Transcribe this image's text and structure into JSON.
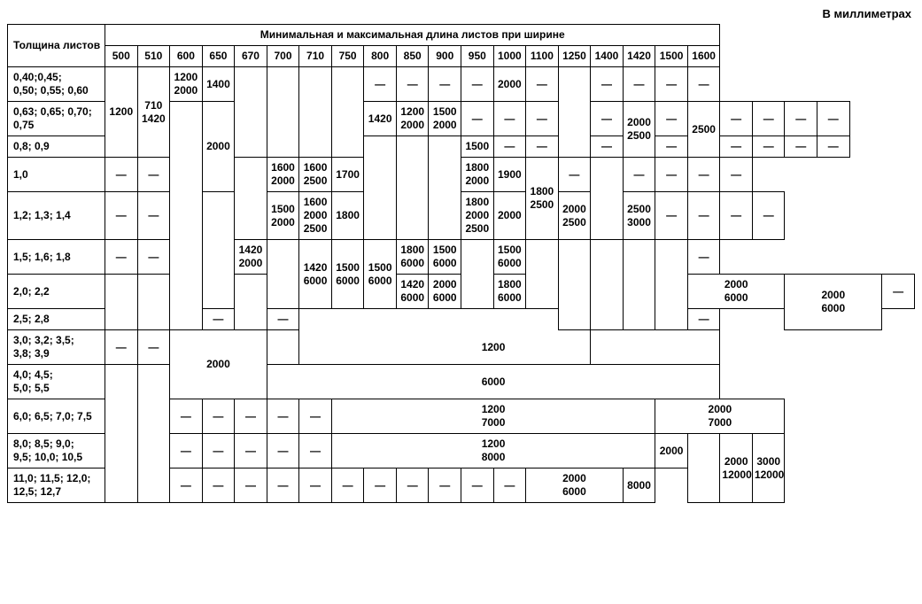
{
  "unit": "В миллиметрах",
  "header": {
    "row_label": "Толщина листов",
    "title": "Минимальная и максимальная длина листов при ширине",
    "widths": [
      "500",
      "510",
      "600",
      "650",
      "670",
      "700",
      "710",
      "750",
      "800",
      "850",
      "900",
      "950",
      "1000",
      "1100",
      "1250",
      "1400",
      "1420",
      "1500",
      "1600"
    ]
  },
  "dash": "—",
  "rows": {
    "r1_label": "0,40;0,45;\n0,50; 0,55; 0,60",
    "r2_label": "0,63; 0,65; 0,70;\n0,75",
    "r3_label": "0,8; 0,9",
    "r4_label": "1,0",
    "r5_label": "1,2; 1,3; 1,4",
    "r6_label": "1,5; 1,6; 1,8",
    "r7_label": "2,0; 2,2",
    "r8_label": "2,5; 2,8",
    "r9_label": "3,0; 3,2; 3,5;\n3,8; 3,9",
    "r10_label": "4,0; 4,5;\n5,0; 5,5",
    "r11_label": "6,0; 6,5; 7,0; 7,5",
    "r12_label": "8,0; 8,5; 9,0;\n9,5; 10,0; 10,5",
    "r13_label": "11,0; 11,5; 12,0;\n12,5; 12,7"
  },
  "cells": {
    "c_500_r1_3": "1200",
    "c_510_r1_3": "710\n1420",
    "c_600_r1": "1200\n2000",
    "c_650_r1": "1400",
    "c_650_r2_4": "2000",
    "c_700_r2": "1420",
    "c_710_r2": "1200\n2000",
    "c_750_r2": "1500\n2000",
    "c_800_r3": "1500",
    "c_1000_r1": "2000",
    "c_1000_r2_3": "2000\n2500",
    "c_1250_r2_3": "2500",
    "c_750_r4": "1600\n2000",
    "c_800_r4": "1600\n2500",
    "c_850_r4": "1700",
    "c_900_r4": "1800\n2000",
    "c_950_r4": "1900",
    "c_1000_r4_5": "1800\n2500",
    "c_750_r5": "1500\n2000",
    "c_800_r5": "1600\n2000\n2500",
    "c_850_r5": "1800",
    "c_900_r5": "1800\n2000\n2500",
    "c_950_r5": "2000",
    "c_1100_r5": "2000\n2500",
    "c_1250_r5": "2500\n3000",
    "c_670_r6": "1420\n2000",
    "c_700_r7": "1420\n6000",
    "c_710_r6_7": "1420\n6000",
    "c_750_r6_7": "1500\n6000",
    "c_800_r6_7": "1500\n6000",
    "c_850_r6": "1800\n6000",
    "c_900_r6": "1500\n6000",
    "c_1000_r6": "1500\n6000",
    "c_850_r7": "2000\n6000",
    "c_900_r7": "1800\n6000",
    "c_950_1100_r7": "2000\n6000",
    "c_1400_1500_r7_8": "2000\n6000",
    "c_600_670_r9_10": "2000",
    "c_700_1600_r9": "1200",
    "c_700_1600_r10": "6000",
    "c_700_1250_r11": "1200\n7000",
    "c_1400_1600_r11": "2000\n7000",
    "c_700_1250_r12": "1200\n8000",
    "c_1400_r12_13": "2000",
    "c_1400_r13_b": "8000",
    "c_1500_r12_13": "2000\n12000",
    "c_1600_r12_13": "3000\n12000",
    "c_950_1100_r13": "2000\n6000"
  }
}
